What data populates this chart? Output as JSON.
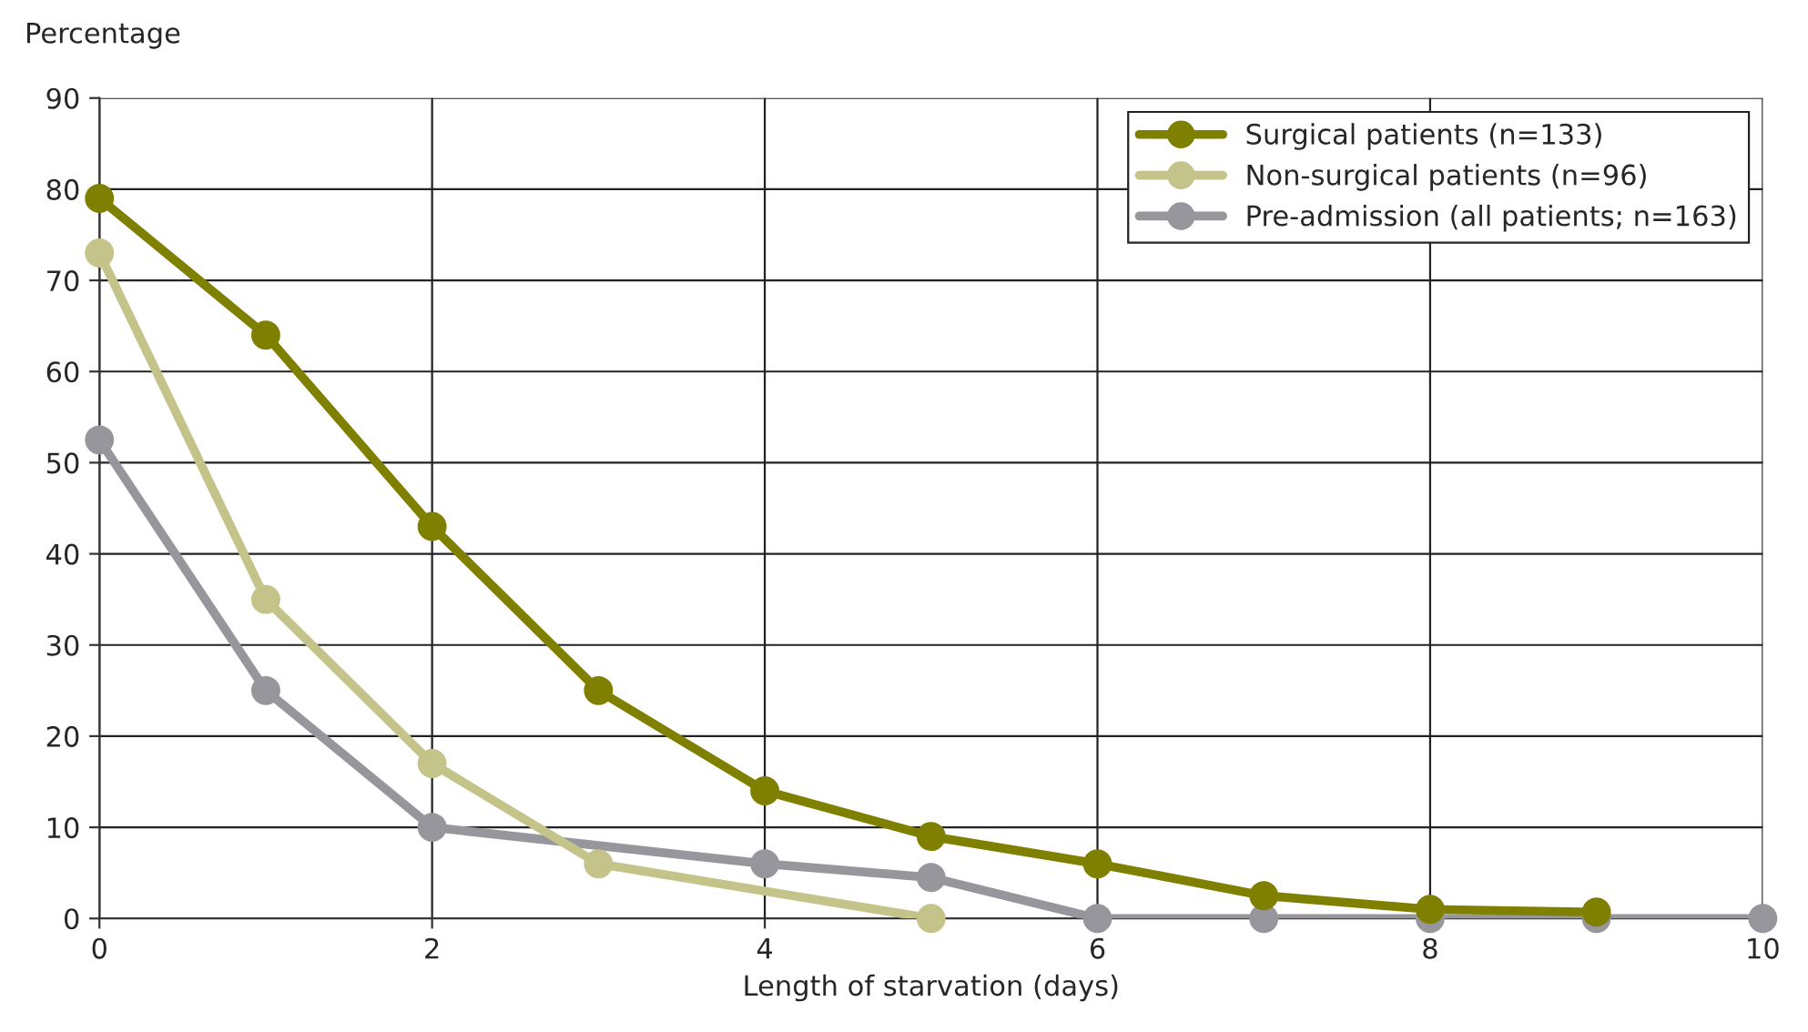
{
  "chart_data": {
    "type": "line",
    "xlabel": "Length of starvation (days)",
    "ylabel": "Percentage",
    "xlim": [
      0,
      10
    ],
    "xticks": [
      0,
      2,
      4,
      6,
      8,
      10
    ],
    "ylim": [
      0,
      90
    ],
    "yticks": [
      0,
      10,
      20,
      30,
      40,
      50,
      60,
      70,
      80,
      90
    ],
    "grid": true,
    "legend": "top right",
    "marker": "circle",
    "line_style": "solid",
    "series": [
      {
        "name": "Surgical patients (n=133)",
        "color": "#7f7f00",
        "x": [
          0,
          1,
          2,
          3,
          4,
          5,
          6,
          7,
          8,
          9
        ],
        "values": [
          79,
          64,
          43,
          25,
          14,
          9,
          6,
          2.5,
          1,
          0.7
        ]
      },
      {
        "name": "Non-surgical patients (n=96)",
        "color": "#c4c48a",
        "x": [
          0,
          1,
          2,
          3,
          5
        ],
        "values": [
          73,
          35,
          17,
          6,
          0
        ]
      },
      {
        "name": "Pre-admission (all patients; n=163)",
        "color": "#96969c",
        "x": [
          0,
          1,
          2,
          4,
          5,
          6,
          7,
          8,
          9,
          10
        ],
        "values": [
          52.5,
          25,
          10,
          6,
          4.5,
          0,
          0,
          0,
          0,
          0
        ]
      }
    ]
  }
}
